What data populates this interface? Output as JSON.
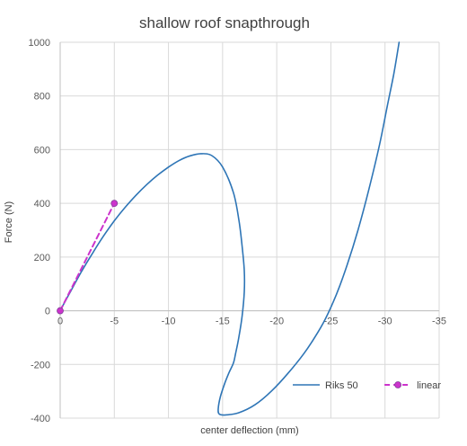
{
  "chart_data": {
    "type": "scatter",
    "title": "shallow roof snapthrough",
    "xlabel": "center deflection (mm)",
    "ylabel": "Force (N)",
    "xlim": [
      0,
      -35
    ],
    "ylim": [
      -400,
      1000
    ],
    "x_ticks": [
      0,
      -5,
      -10,
      -15,
      -20,
      -25,
      -30,
      -35
    ],
    "y_ticks": [
      -400,
      -200,
      0,
      200,
      400,
      600,
      800,
      1000
    ],
    "grid": true,
    "legend_position": "bottom-right",
    "series": [
      {
        "name": "Riks 50",
        "color": "#2e75b6",
        "style": "solid",
        "markers": false,
        "x": [
          0,
          -1,
          -2,
          -3,
          -4,
          -5,
          -6,
          -7,
          -8,
          -9,
          -10,
          -11,
          -12,
          -13,
          -14,
          -15,
          -16,
          -16.5,
          -16.8,
          -17,
          -17,
          -16.8,
          -16.5,
          -16.2,
          -16,
          -15.6,
          -15.2,
          -14.8,
          -14.6,
          -14.7,
          -15.3,
          -16.5,
          -18,
          -19.5,
          -21,
          -22.5,
          -23.5,
          -24.5,
          -25.5,
          -26.5,
          -27.5,
          -28.5,
          -29.5,
          -30.2,
          -30.8,
          -31.3
        ],
        "y": [
          0,
          75,
          148,
          215,
          278,
          335,
          385,
          430,
          470,
          505,
          535,
          560,
          577,
          585,
          578,
          535,
          440,
          340,
          240,
          150,
          70,
          -20,
          -100,
          -160,
          -195,
          -230,
          -270,
          -320,
          -365,
          -385,
          -388,
          -380,
          -350,
          -300,
          -235,
          -160,
          -100,
          -30,
          60,
          170,
          300,
          450,
          620,
          760,
          880,
          1000
        ]
      },
      {
        "name": "linear",
        "color": "#cc33cc",
        "style": "dashed",
        "markers": true,
        "x": [
          0,
          -5
        ],
        "y": [
          0,
          400
        ]
      }
    ]
  }
}
